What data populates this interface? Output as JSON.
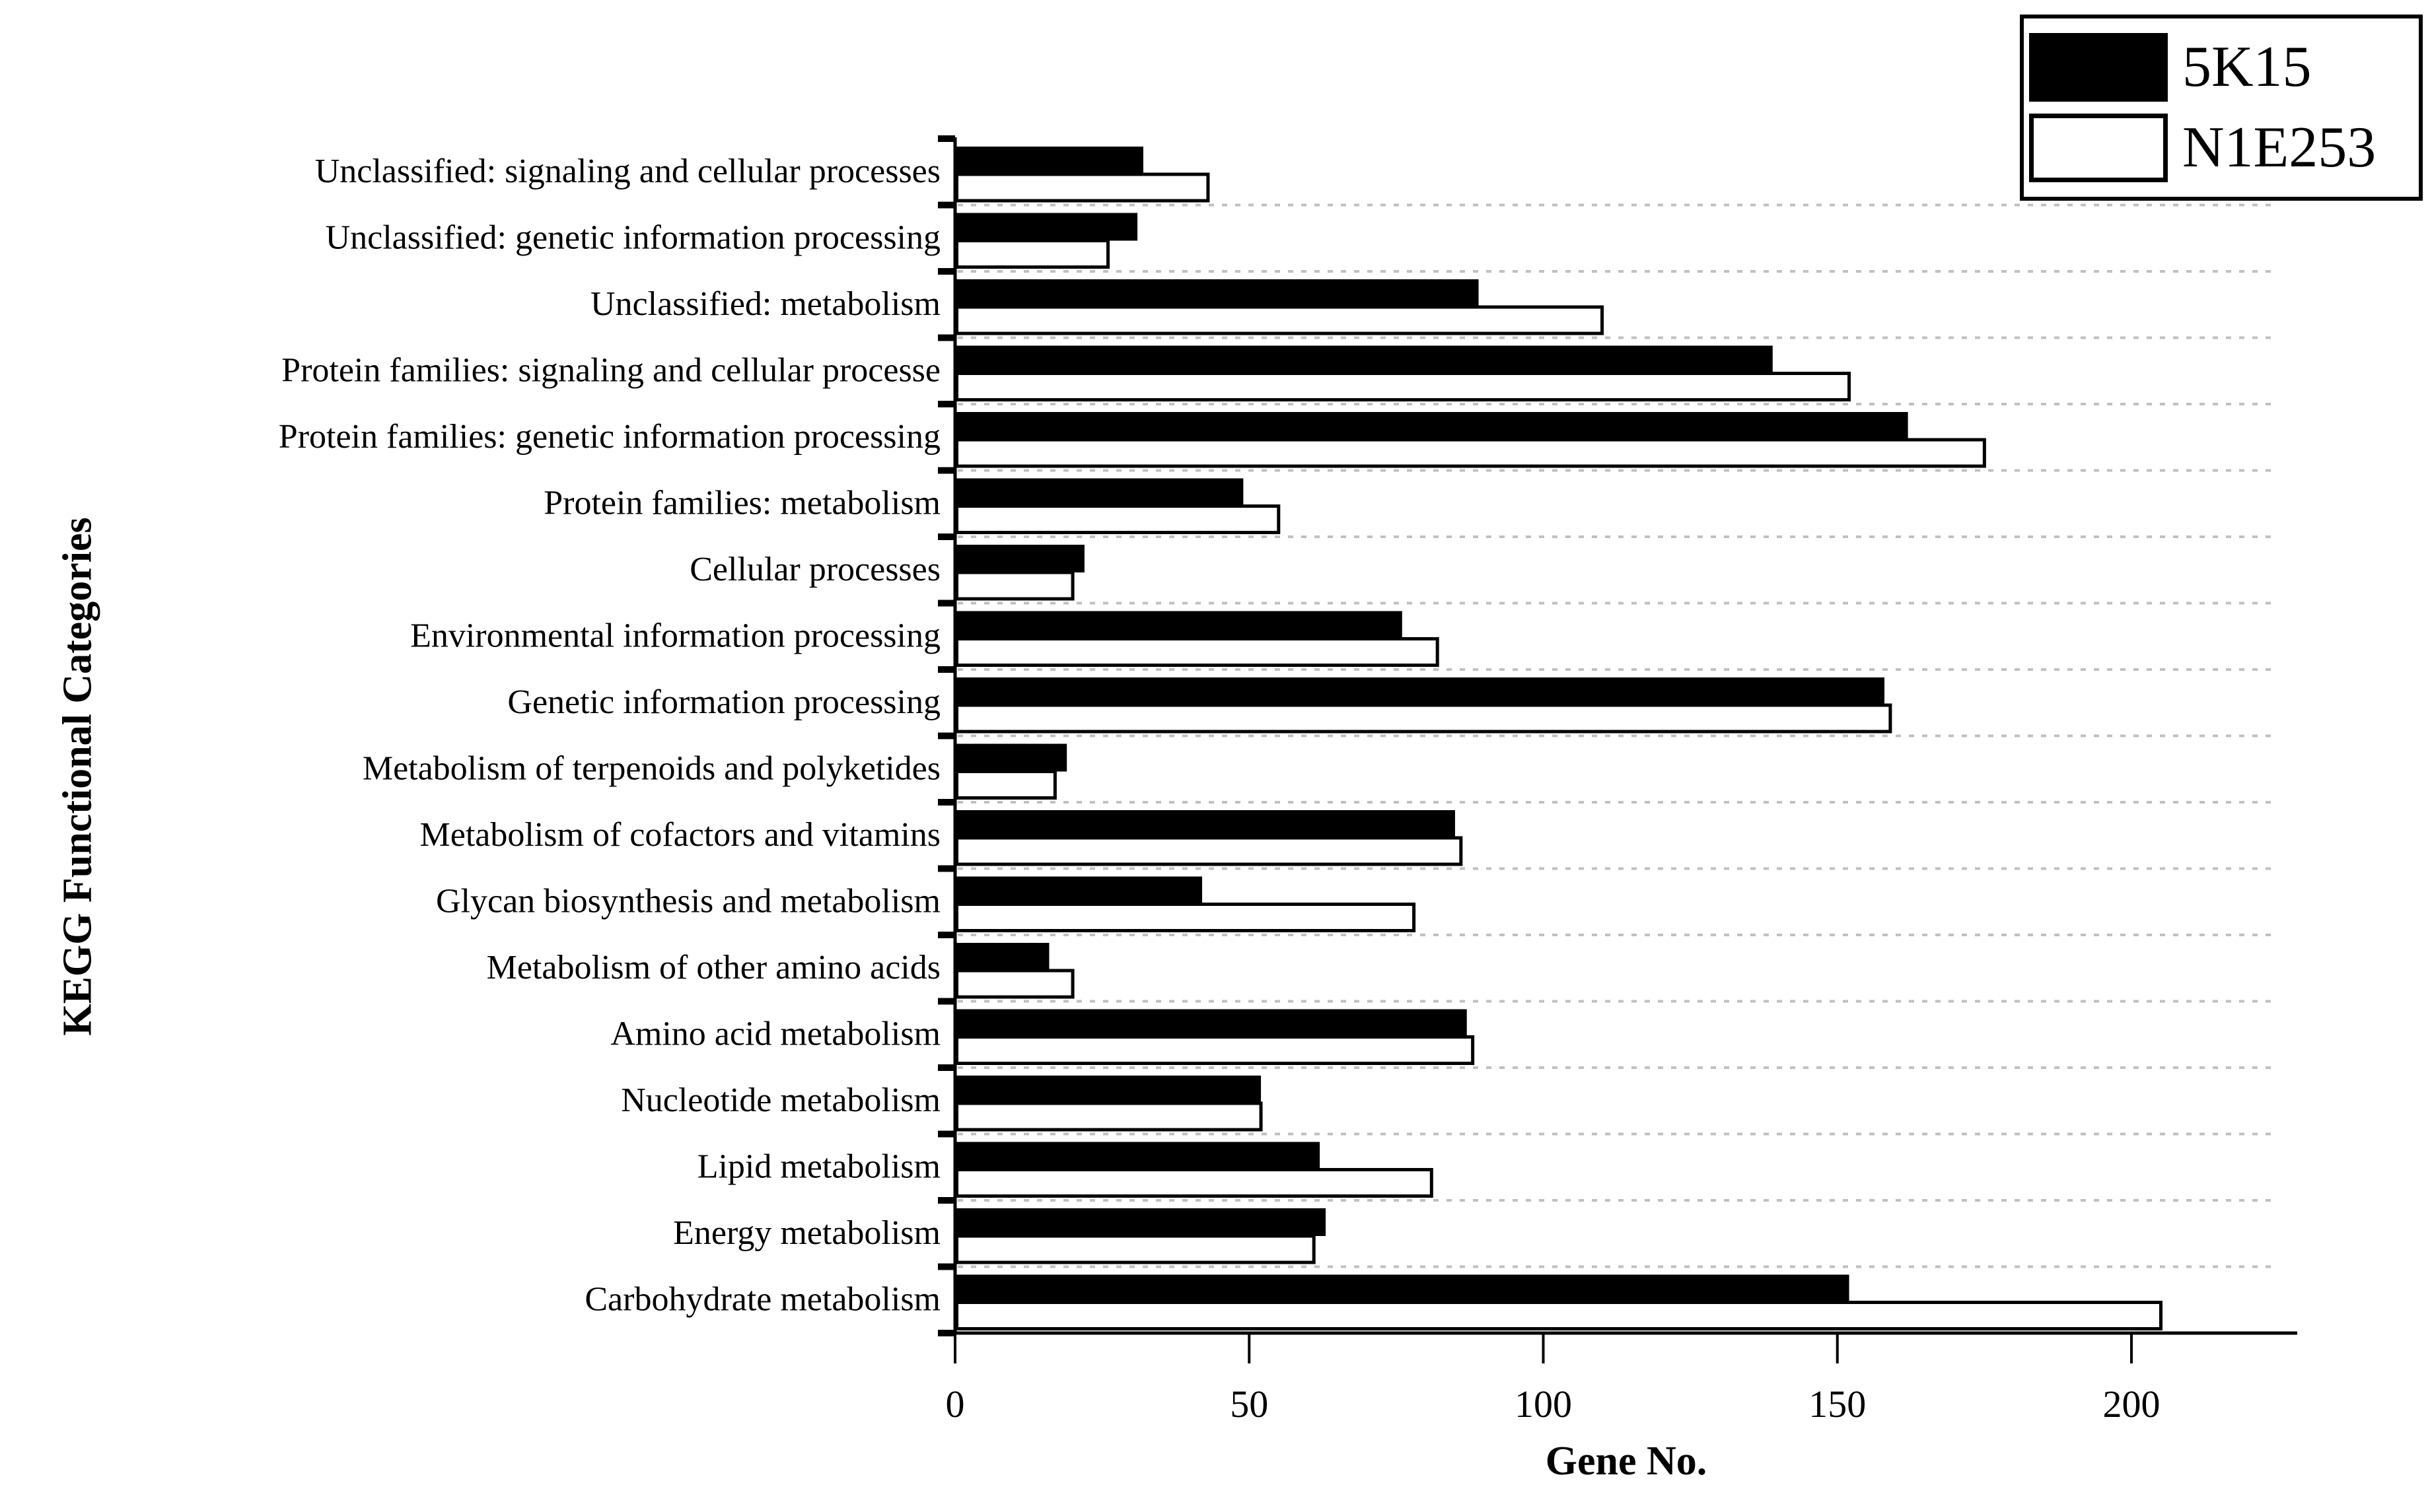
{
  "figure": {
    "background": "#ffffff"
  },
  "colors": {
    "bar_5K15": "#000000",
    "bar_N1E253": "#ffffff",
    "bar_border": "#000000",
    "axis": "#000000",
    "grid": "#c0c0c0"
  },
  "legend": {
    "position": "top-right",
    "items": [
      {
        "label": "5K15",
        "fill": "#000000",
        "border": "#000000"
      },
      {
        "label": "N1E253",
        "fill": "#ffffff",
        "border": "#000000"
      }
    ]
  },
  "chart_data": {
    "type": "bar",
    "orientation": "horizontal",
    "title": "",
    "xlabel": "Gene No.",
    "ylabel": "KEGG Functional Categories",
    "xlim": [
      0,
      225
    ],
    "xticks": [
      0,
      50,
      100,
      150,
      200
    ],
    "grid": "dotted category separators, horizontal",
    "legend_position": "top-right",
    "categories_top_to_bottom": [
      "Unclassified: signaling and cellular processes",
      "Unclassified: genetic information processing",
      "Unclassified: metabolism",
      "Protein families: signaling and cellular processe",
      "Protein families: genetic information processing",
      "Protein families: metabolism",
      "Cellular processes",
      "Environmental information processing",
      "Genetic information processing",
      "Metabolism of terpenoids and polyketides",
      "Metabolism of cofactors and vitamins",
      "Glycan biosynthesis and metabolism",
      "Metabolism of other amino acids",
      "Amino acid metabolism",
      "Nucleotide metabolism",
      "Lipid metabolism",
      "Energy metabolism",
      "Carbohydrate metabolism"
    ],
    "series": [
      {
        "name": "5K15",
        "color": "#000000",
        "values": [
          32,
          31,
          89,
          139,
          162,
          49,
          22,
          76,
          158,
          19,
          85,
          42,
          16,
          87,
          52,
          62,
          63,
          152
        ]
      },
      {
        "name": "N1E253",
        "color": "#ffffff",
        "values": [
          43,
          26,
          110,
          152,
          175,
          55,
          20,
          82,
          159,
          17,
          86,
          78,
          20,
          88,
          52,
          81,
          61,
          205
        ]
      }
    ]
  }
}
